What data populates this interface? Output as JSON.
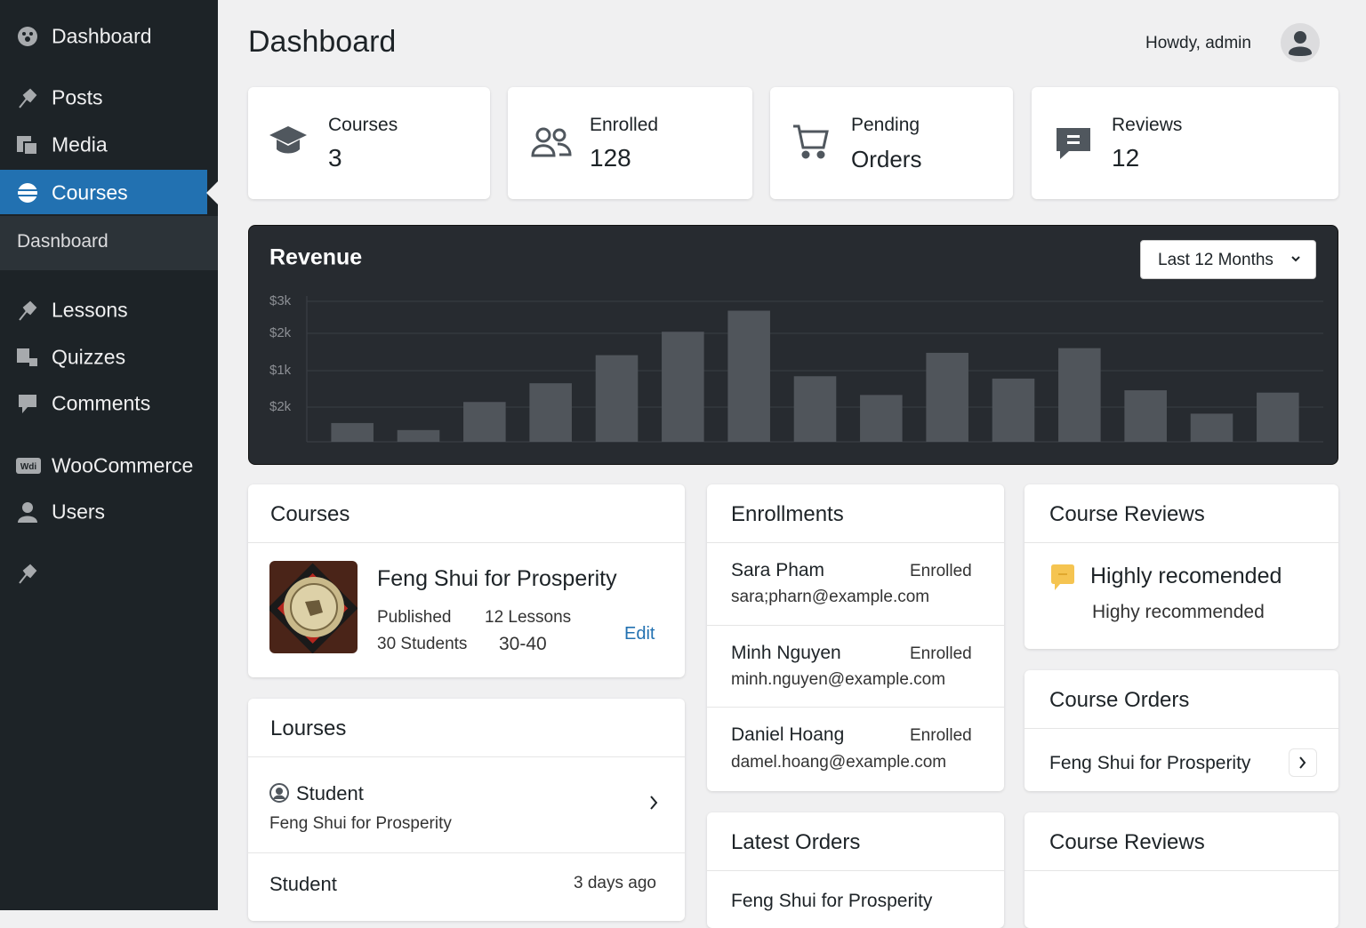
{
  "sidebar": {
    "menu": [
      "Dashboard",
      "Posts",
      "Media",
      "Courses"
    ],
    "submenu": [
      "Dasnboard"
    ],
    "menu2": [
      "Lessons",
      "Quizzes",
      "Comments"
    ],
    "menu3": [
      "WooCommerce",
      "Users"
    ]
  },
  "header": {
    "title": "Dashboard",
    "greeting": "Howdy, admin"
  },
  "stats": [
    {
      "label": "Courses",
      "value": 3
    },
    {
      "label": "Enrolled",
      "value": 128
    },
    {
      "label": "Pending",
      "value": "Orders"
    },
    {
      "label": "Reviews",
      "value": 12
    }
  ],
  "revenue": {
    "range": "Last 12 Months"
  },
  "chart_data": {
    "type": "bar",
    "title": "Revenue",
    "y_axis_labels": [
      "$3k",
      "$2k",
      "$1k",
      "$2k"
    ],
    "values": [
      400,
      250,
      850,
      1250,
      1850,
      2350,
      2800,
      1400,
      1000,
      1900,
      1350,
      2000,
      1100,
      600,
      1050
    ],
    "ylim": [
      0,
      3000
    ],
    "color": "#50555b",
    "grid": true
  },
  "courses_panel": {
    "title": "Courses",
    "item": {
      "name": "Feng Shui for Prosperity",
      "status": "Published",
      "lessons": "12 Lessons",
      "students": "30 Students",
      "range": "30-40",
      "action": "Edit"
    }
  },
  "lourses_panel": {
    "title": "Lourses",
    "rows": [
      {
        "title": "Student",
        "subtitle": "Feng Shui for Prosperity"
      },
      {
        "title": "Student",
        "meta": "3 days ago"
      }
    ]
  },
  "enrollments": {
    "title": "Enrollments",
    "items": [
      {
        "name": "Sara Pham",
        "status": "Enrolled",
        "email": "sara;pharn@example.com"
      },
      {
        "name": "Minh Nguyen",
        "status": "Enrolled",
        "email": "minh.nguyen@example.com"
      },
      {
        "name": "Daniel Hoang",
        "status": "Enrolled",
        "email": "damel.hoang@example.com"
      }
    ]
  },
  "latest_orders": {
    "title": "Latest Orders",
    "items": [
      "Feng Shui for Prosperity"
    ]
  },
  "course_reviews": {
    "title": "Course Reviews",
    "headline": "Highly recomended",
    "body": "Highy recommended"
  },
  "course_orders": {
    "title": "Course Orders",
    "items": [
      "Feng Shui for Prosperity"
    ]
  },
  "course_reviews_2": {
    "title": "Course Reviews"
  }
}
